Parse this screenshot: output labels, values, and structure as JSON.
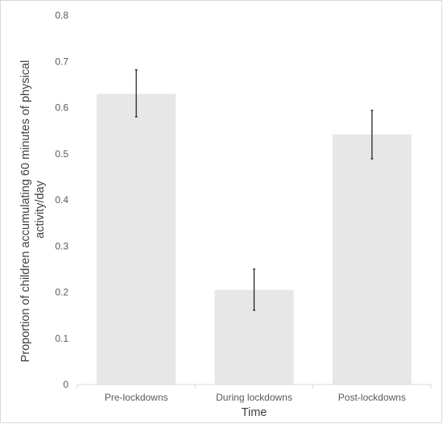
{
  "chart_data": {
    "type": "bar",
    "title": "",
    "categories": [
      "Pre-lockdowns",
      "During lockdowns",
      "Post-lockdowns"
    ],
    "values": [
      0.63,
      0.205,
      0.542
    ],
    "error_low": [
      0.58,
      0.161,
      0.489
    ],
    "error_high": [
      0.682,
      0.25,
      0.594
    ],
    "xlabel": "Time",
    "ylabel_lines": [
      "Proportion of children accumulating 60 minutes of physical",
      "activity/day"
    ],
    "ylim": [
      0,
      0.8
    ],
    "yticks": [
      "0",
      "0.1",
      "0.2",
      "0.3",
      "0.4",
      "0.5",
      "0.6",
      "0.7",
      "0.8"
    ],
    "grid": false,
    "legend": "none"
  },
  "colors": {
    "bar": "#e7e7e7",
    "error_bar": "#262626",
    "axis": "#d9d9d9",
    "frame": "#d9d9d9",
    "tick_text": "#595959",
    "title_text": "#404040"
  }
}
